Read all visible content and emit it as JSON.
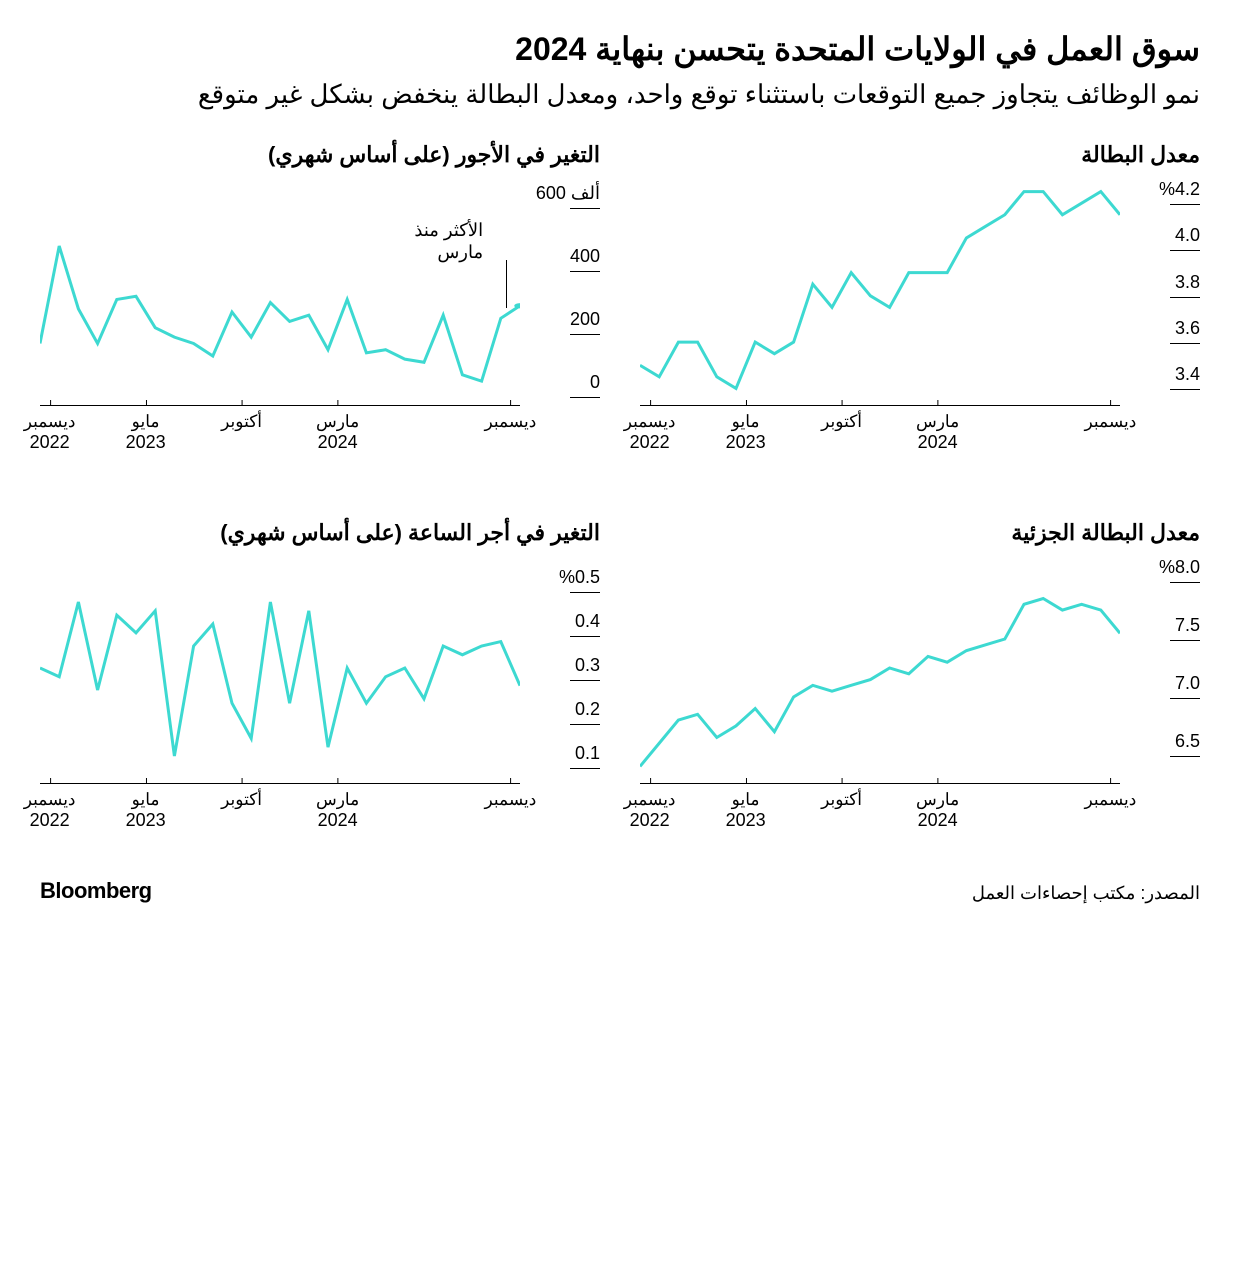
{
  "title": "سوق العمل في الولايات المتحدة يتحسن بنهاية 2024",
  "subtitle": "نمو الوظائف يتجاوز جميع التوقعات باستثناء توقع واحد، ومعدل البطالة ينخفض بشكل غير متوقع",
  "brand": "Bloomberg",
  "source": "المصدر: مكتب إحصاءات العمل",
  "line_color": "#3dd9d1",
  "line_width": 3,
  "background_color": "#ffffff",
  "x_axis_common": {
    "ticks": [
      {
        "pos": 0.02,
        "label_top": "ديسمبر",
        "label_bottom": "2022"
      },
      {
        "pos": 0.22,
        "label_top": "مايو",
        "label_bottom": "2023"
      },
      {
        "pos": 0.42,
        "label_top": "أكتوبر",
        "label_bottom": ""
      },
      {
        "pos": 0.62,
        "label_top": "مارس",
        "label_bottom": "2024"
      },
      {
        "pos": 0.98,
        "label_top": "ديسمبر",
        "label_bottom": ""
      }
    ]
  },
  "charts": {
    "unemployment": {
      "title": "معدل البطالة",
      "type": "line",
      "grid_position": "top-right",
      "ylim": [
        3.3,
        4.25
      ],
      "y_ticks": [
        {
          "value": 4.2,
          "label": "%4.2"
        },
        {
          "value": 4.0,
          "label": "4.0"
        },
        {
          "value": 3.8,
          "label": "3.8"
        },
        {
          "value": 3.6,
          "label": "3.6"
        },
        {
          "value": 3.4,
          "label": "3.4"
        }
      ],
      "values": [
        3.45,
        3.4,
        3.55,
        3.55,
        3.4,
        3.35,
        3.55,
        3.5,
        3.55,
        3.8,
        3.7,
        3.85,
        3.75,
        3.7,
        3.85,
        3.85,
        3.85,
        4.0,
        4.05,
        4.1,
        4.2,
        4.2,
        4.1,
        4.15,
        4.2,
        4.1
      ]
    },
    "payrolls": {
      "title": "التغير في الأجور (على أساس شهري)",
      "type": "line",
      "grid_position": "top-left",
      "ylim": [
        -50,
        650
      ],
      "y_ticks": [
        {
          "value": 600,
          "label": "600 ألف"
        },
        {
          "value": 400,
          "label": "400"
        },
        {
          "value": 200,
          "label": "200"
        },
        {
          "value": 0,
          "label": "0"
        }
      ],
      "values": [
        130,
        440,
        240,
        130,
        270,
        280,
        180,
        150,
        130,
        90,
        230,
        150,
        260,
        200,
        220,
        110,
        270,
        100,
        110,
        80,
        70,
        220,
        30,
        10,
        210,
        250
      ],
      "annotation": {
        "text_lines": [
          "الأكثر منذ",
          "مارس"
        ],
        "x_pos_pct": 78,
        "y_pos_pct": 18,
        "line_from_y": 36,
        "line_to_y": 58,
        "line_x": 97
      },
      "end_marker": true
    },
    "underemployment": {
      "title": "معدل البطالة الجزئية",
      "type": "line",
      "grid_position": "bottom-right",
      "ylim": [
        6.2,
        8.1
      ],
      "y_ticks": [
        {
          "value": 8.0,
          "label": "%8.0"
        },
        {
          "value": 7.5,
          "label": "7.5"
        },
        {
          "value": 7.0,
          "label": "7.0"
        },
        {
          "value": 6.5,
          "label": "6.5"
        }
      ],
      "values": [
        6.3,
        6.5,
        6.7,
        6.75,
        6.55,
        6.65,
        6.8,
        6.6,
        6.9,
        7.0,
        6.95,
        7.0,
        7.05,
        7.15,
        7.1,
        7.25,
        7.2,
        7.3,
        7.35,
        7.4,
        7.7,
        7.75,
        7.65,
        7.7,
        7.65,
        7.45
      ]
    },
    "hourly_earnings": {
      "title": "التغير في أجر الساعة (على أساس شهري)",
      "type": "line",
      "grid_position": "bottom-left",
      "ylim": [
        0.05,
        0.55
      ],
      "y_ticks": [
        {
          "value": 0.5,
          "label": "%0.5"
        },
        {
          "value": 0.4,
          "label": "0.4"
        },
        {
          "value": 0.3,
          "label": "0.3"
        },
        {
          "value": 0.2,
          "label": "0.2"
        },
        {
          "value": 0.1,
          "label": "0.1"
        }
      ],
      "values": [
        0.3,
        0.28,
        0.45,
        0.25,
        0.42,
        0.38,
        0.43,
        0.1,
        0.35,
        0.4,
        0.22,
        0.14,
        0.45,
        0.22,
        0.43,
        0.12,
        0.3,
        0.22,
        0.28,
        0.3,
        0.23,
        0.35,
        0.33,
        0.35,
        0.36,
        0.26
      ]
    }
  }
}
